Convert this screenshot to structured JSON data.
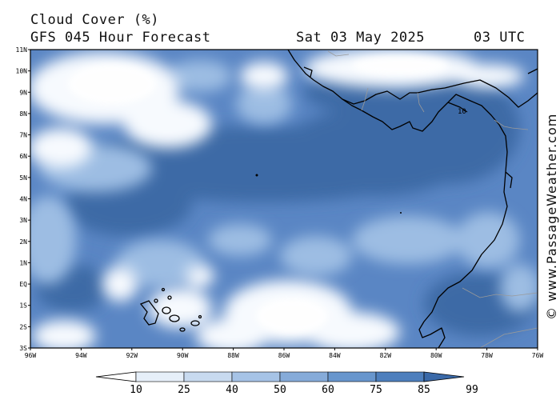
{
  "header": {
    "title": "Cloud Cover (%)",
    "subtitle": "GFS 045 Hour Forecast",
    "date": "Sat 03 May 2025",
    "time": "03 UTC"
  },
  "credit": "© www.PassageWeather.com",
  "map": {
    "lat_labels": [
      "11N",
      "10N",
      "9N",
      "8N",
      "7N",
      "6N",
      "5N",
      "4N",
      "3N",
      "2N",
      "1N",
      "EQ",
      "1S",
      "2S",
      "3S"
    ],
    "lon_labels": [
      "96W",
      "94W",
      "92W",
      "90W",
      "88W",
      "86W",
      "84W",
      "82W",
      "80W",
      "78W",
      "76W"
    ],
    "lat_range": [
      11,
      -3
    ],
    "lon_range": [
      -96,
      -76
    ],
    "contour_label": "10"
  },
  "legend": {
    "labels": [
      "10",
      "25",
      "40",
      "50",
      "60",
      "75",
      "85",
      "99"
    ],
    "colors": [
      "#ffffff",
      "#e6eff9",
      "#c8daef",
      "#a6c3e6",
      "#86abd9",
      "#6896cd",
      "#4e7fbd",
      "#3a69a8"
    ]
  },
  "colors": {
    "cloud_deep": "#3e6aa6",
    "cloud_mid": "#5a86c4",
    "cloud_light": "#9dbde3",
    "clear": "#f7fafe",
    "coast": "#000000"
  }
}
